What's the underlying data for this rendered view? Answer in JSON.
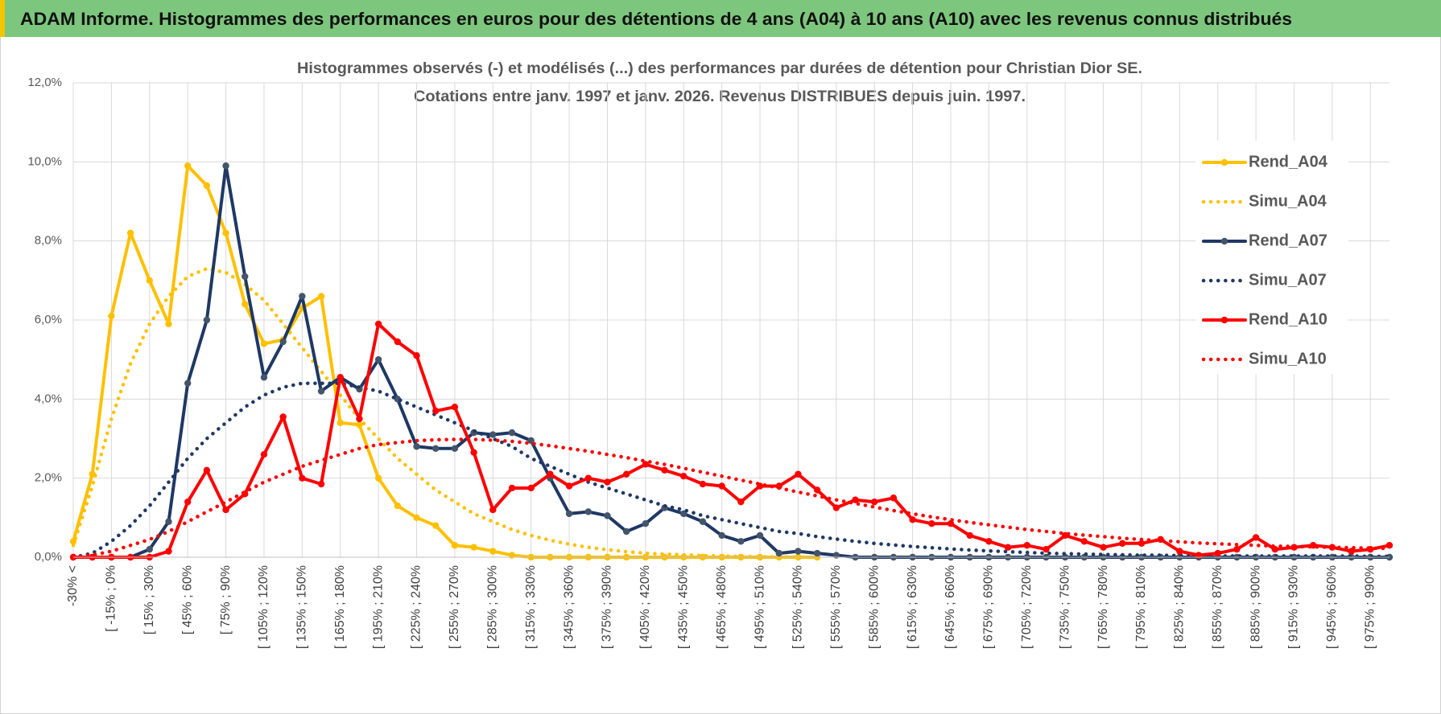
{
  "header": {
    "title": "ADAM Informe. Histogrammes des performances en euros pour des détentions de 4 ans (A04) à 10 ans (A10) avec les revenus connus distribués"
  },
  "chart_data": {
    "type": "line",
    "title": "Histogrammes observés (-) et modélisés (...) des performances par durées de détention pour Christian Dior SE.",
    "subtitle": "Cotations entre janv. 1997 et janv. 2026. Revenus DISTRIBUES depuis juin. 1997.",
    "categories": [
      "-30% <",
      null,
      "[ -15% ; 0%",
      null,
      "[ 15% ; 30%",
      null,
      "[ 45% ; 60%",
      null,
      "[ 75% ; 90%",
      null,
      "[ 105% ; 120%",
      null,
      "[ 135% ; 150%",
      null,
      "[ 165% ; 180%",
      null,
      "[ 195% ; 210%",
      null,
      "[ 225% ; 240%",
      null,
      "[ 255% ; 270%",
      null,
      "[ 285% ; 300%",
      null,
      "[ 315% ; 330%",
      null,
      "[ 345% ; 360%",
      null,
      "[ 375% ; 390%",
      null,
      "[ 405% ; 420%",
      null,
      "[ 435% ; 450%",
      null,
      "[ 465% ; 480%",
      null,
      "[ 495% ; 510%",
      null,
      "[ 525% ; 540%",
      null,
      "[ 555% ; 570%",
      null,
      "[ 585% ; 600%",
      null,
      "[ 615% ; 630%",
      null,
      "[ 645% ; 660%",
      null,
      "[ 675% ; 690%",
      null,
      "[ 705% ; 720%",
      null,
      "[ 735% ; 750%",
      null,
      "[ 765% ; 780%",
      null,
      "[ 795% ; 810%",
      null,
      "[ 825% ; 840%",
      null,
      "[ 855% ; 870%",
      null,
      "[ 885% ; 900%",
      null,
      "[ 915% ; 930%",
      null,
      "[ 945% ; 960%",
      null,
      "[ 975% ; 990%",
      null
    ],
    "series": [
      {
        "name": "Rend_A04",
        "color": "#FFC000",
        "style": "solid",
        "markers": true,
        "values": [
          0.4,
          2.1,
          6.1,
          8.2,
          7.0,
          5.9,
          9.9,
          9.4,
          8.2,
          6.4,
          5.4,
          5.5,
          6.3,
          6.6,
          3.4,
          3.35,
          2.0,
          1.3,
          1.0,
          0.8,
          0.3,
          0.25,
          0.15,
          0.05,
          0,
          0,
          0,
          0,
          0,
          0,
          0,
          0,
          0,
          0,
          0,
          0,
          0,
          0,
          0,
          0,
          null,
          null,
          null,
          null,
          null,
          null,
          null,
          null,
          null,
          null,
          null,
          null,
          null,
          null,
          null,
          null,
          null,
          null,
          null,
          null,
          null,
          null,
          null,
          null,
          null,
          null,
          null,
          null,
          null,
          null
        ]
      },
      {
        "name": "Simu_A04",
        "color": "#FFC000",
        "style": "dotted",
        "markers": false,
        "values": [
          0.3,
          1.8,
          3.5,
          4.9,
          5.9,
          6.6,
          7.1,
          7.3,
          7.2,
          6.9,
          6.5,
          5.9,
          5.3,
          4.7,
          4.1,
          3.5,
          3.0,
          2.5,
          2.1,
          1.7,
          1.4,
          1.1,
          0.9,
          0.7,
          0.55,
          0.43,
          0.33,
          0.25,
          0.19,
          0.14,
          0.1,
          0.08,
          0.06,
          0.04,
          0.03,
          0.02,
          0.01,
          0.01,
          0,
          0,
          null,
          null,
          null,
          null,
          null,
          null,
          null,
          null,
          null,
          null,
          null,
          null,
          null,
          null,
          null,
          null,
          null,
          null,
          null,
          null,
          null,
          null,
          null,
          null,
          null,
          null,
          null,
          null,
          null,
          null
        ]
      },
      {
        "name": "Rend_A07",
        "color": "#1F3864",
        "style": "solid",
        "markers": true,
        "values": [
          0,
          0,
          0,
          0,
          0.2,
          0.9,
          4.4,
          6.0,
          9.9,
          7.1,
          4.55,
          5.45,
          6.6,
          4.2,
          4.55,
          4.25,
          5.0,
          4.0,
          2.8,
          2.75,
          2.75,
          3.15,
          3.1,
          3.15,
          2.95,
          2.0,
          1.1,
          1.15,
          1.05,
          0.65,
          0.85,
          1.25,
          1.1,
          0.9,
          0.55,
          0.4,
          0.55,
          0.1,
          0.15,
          0.1,
          0.05,
          0,
          0,
          0,
          0,
          0,
          0,
          0,
          0,
          0,
          0,
          0,
          0,
          0,
          0,
          0,
          0,
          0,
          0,
          0,
          0,
          0,
          0,
          0,
          0,
          0,
          0,
          0,
          0,
          0
        ]
      },
      {
        "name": "Simu_A07",
        "color": "#1F3864",
        "style": "dotted",
        "markers": false,
        "values": [
          0,
          0.1,
          0.4,
          0.8,
          1.3,
          1.9,
          2.5,
          3.0,
          3.4,
          3.8,
          4.1,
          4.3,
          4.4,
          4.4,
          4.4,
          4.3,
          4.2,
          4.0,
          3.8,
          3.6,
          3.4,
          3.2,
          3.0,
          2.8,
          2.5,
          2.3,
          2.1,
          1.9,
          1.75,
          1.6,
          1.45,
          1.3,
          1.2,
          1.05,
          0.95,
          0.85,
          0.75,
          0.65,
          0.6,
          0.52,
          0.46,
          0.4,
          0.35,
          0.31,
          0.27,
          0.24,
          0.21,
          0.18,
          0.16,
          0.14,
          0.12,
          0.1,
          0.09,
          0.08,
          0.07,
          0.06,
          0.05,
          0.05,
          0.04,
          0.04,
          0.03,
          0.03,
          0.03,
          0.03,
          0.03,
          0.03,
          0.03,
          0.03,
          0.02,
          0.02
        ]
      },
      {
        "name": "Rend_A10",
        "color": "#FF0000",
        "style": "solid",
        "markers": true,
        "values": [
          0,
          0,
          0,
          0,
          0,
          0.15,
          1.4,
          2.2,
          1.2,
          1.6,
          2.6,
          3.55,
          2.0,
          1.85,
          4.55,
          3.5,
          5.9,
          5.45,
          5.1,
          3.7,
          3.8,
          2.65,
          1.2,
          1.75,
          1.75,
          2.1,
          1.8,
          2.0,
          1.9,
          2.1,
          2.35,
          2.2,
          2.05,
          1.85,
          1.8,
          1.4,
          1.8,
          1.8,
          2.1,
          1.7,
          1.25,
          1.45,
          1.4,
          1.5,
          0.95,
          0.85,
          0.85,
          0.55,
          0.4,
          0.25,
          0.3,
          0.2,
          0.55,
          0.4,
          0.25,
          0.35,
          0.35,
          0.45,
          0.15,
          0.05,
          0.1,
          0.2,
          0.5,
          0.2,
          0.25,
          0.3,
          0.25,
          0.15,
          0.2,
          0.3
        ]
      },
      {
        "name": "Simu_A10",
        "color": "#FF0000",
        "style": "dotted",
        "markers": false,
        "values": [
          0,
          0.05,
          0.15,
          0.3,
          0.45,
          0.65,
          0.9,
          1.15,
          1.4,
          1.65,
          1.9,
          2.1,
          2.3,
          2.45,
          2.6,
          2.75,
          2.85,
          2.9,
          2.95,
          2.97,
          2.98,
          2.98,
          2.96,
          2.93,
          2.88,
          2.82,
          2.75,
          2.68,
          2.6,
          2.52,
          2.43,
          2.35,
          2.25,
          2.15,
          2.05,
          1.95,
          1.85,
          1.75,
          1.65,
          1.55,
          1.45,
          1.36,
          1.27,
          1.18,
          1.1,
          1.02,
          0.95,
          0.88,
          0.82,
          0.76,
          0.7,
          0.65,
          0.6,
          0.56,
          0.52,
          0.48,
          0.45,
          0.42,
          0.39,
          0.36,
          0.34,
          0.32,
          0.3,
          0.28,
          0.27,
          0.26,
          0.25,
          0.24,
          0.23,
          0.22
        ]
      }
    ],
    "ylim": [
      0,
      12
    ],
    "yticks": [
      {
        "value": 0,
        "label": "0,0%"
      },
      {
        "value": 2,
        "label": "2,0%"
      },
      {
        "value": 4,
        "label": "4,0%"
      },
      {
        "value": 6,
        "label": "6,0%"
      },
      {
        "value": 8,
        "label": "8,0%"
      },
      {
        "value": 10,
        "label": "10,0%"
      },
      {
        "value": 12,
        "label": "12,0%"
      }
    ],
    "grid": true,
    "legend": "right"
  }
}
